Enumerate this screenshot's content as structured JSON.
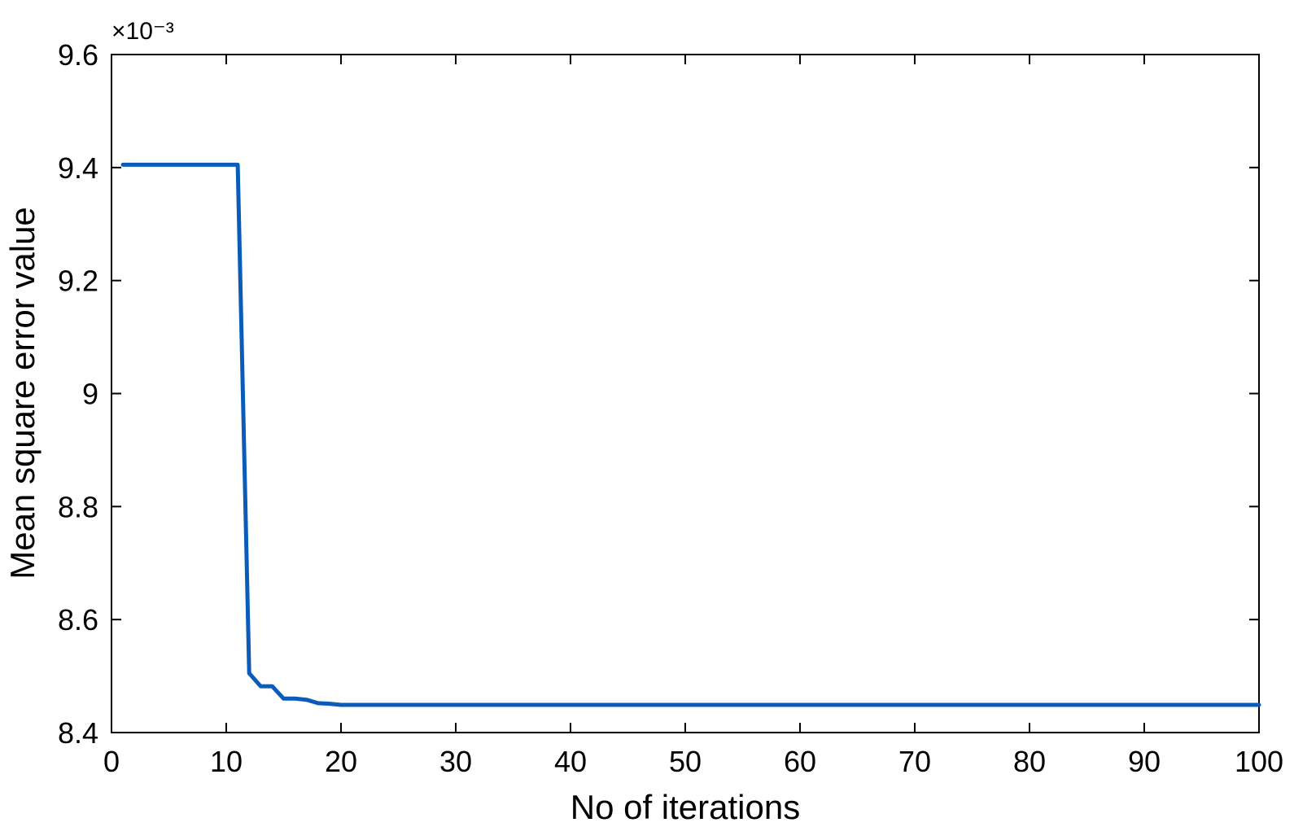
{
  "chart_data": {
    "type": "line",
    "title": "",
    "xlabel": "No of iterations",
    "ylabel": "Mean square error value",
    "y_exponent_label": "×10⁻³",
    "xlim": [
      0,
      100
    ],
    "ylim": [
      8.4,
      9.6
    ],
    "x_ticks": [
      0,
      10,
      20,
      30,
      40,
      50,
      60,
      70,
      80,
      90,
      100
    ],
    "x_tick_labels": [
      "0",
      "10",
      "20",
      "30",
      "40",
      "50",
      "60",
      "70",
      "80",
      "90",
      "100"
    ],
    "y_ticks": [
      8.4,
      8.6,
      8.8,
      9.0,
      9.2,
      9.4,
      9.6
    ],
    "y_tick_labels": [
      "8.4",
      "8.6",
      "8.8",
      "9",
      "9.2",
      "9.4",
      "9.6"
    ],
    "grid": false,
    "legend": "none",
    "series": [
      {
        "color": "#0b5cb8",
        "x": [
          1,
          2,
          3,
          4,
          5,
          6,
          7,
          8,
          9,
          10,
          11,
          12,
          13,
          14,
          15,
          16,
          17,
          18,
          19,
          20,
          25,
          30,
          40,
          50,
          60,
          70,
          80,
          90,
          100
        ],
        "y": [
          9.405,
          9.405,
          9.405,
          9.405,
          9.405,
          9.405,
          9.405,
          9.405,
          9.405,
          9.405,
          9.405,
          8.505,
          8.482,
          8.482,
          8.46,
          8.46,
          8.458,
          8.452,
          8.451,
          8.449,
          8.449,
          8.449,
          8.449,
          8.449,
          8.449,
          8.449,
          8.449,
          8.449,
          8.449
        ]
      }
    ]
  }
}
